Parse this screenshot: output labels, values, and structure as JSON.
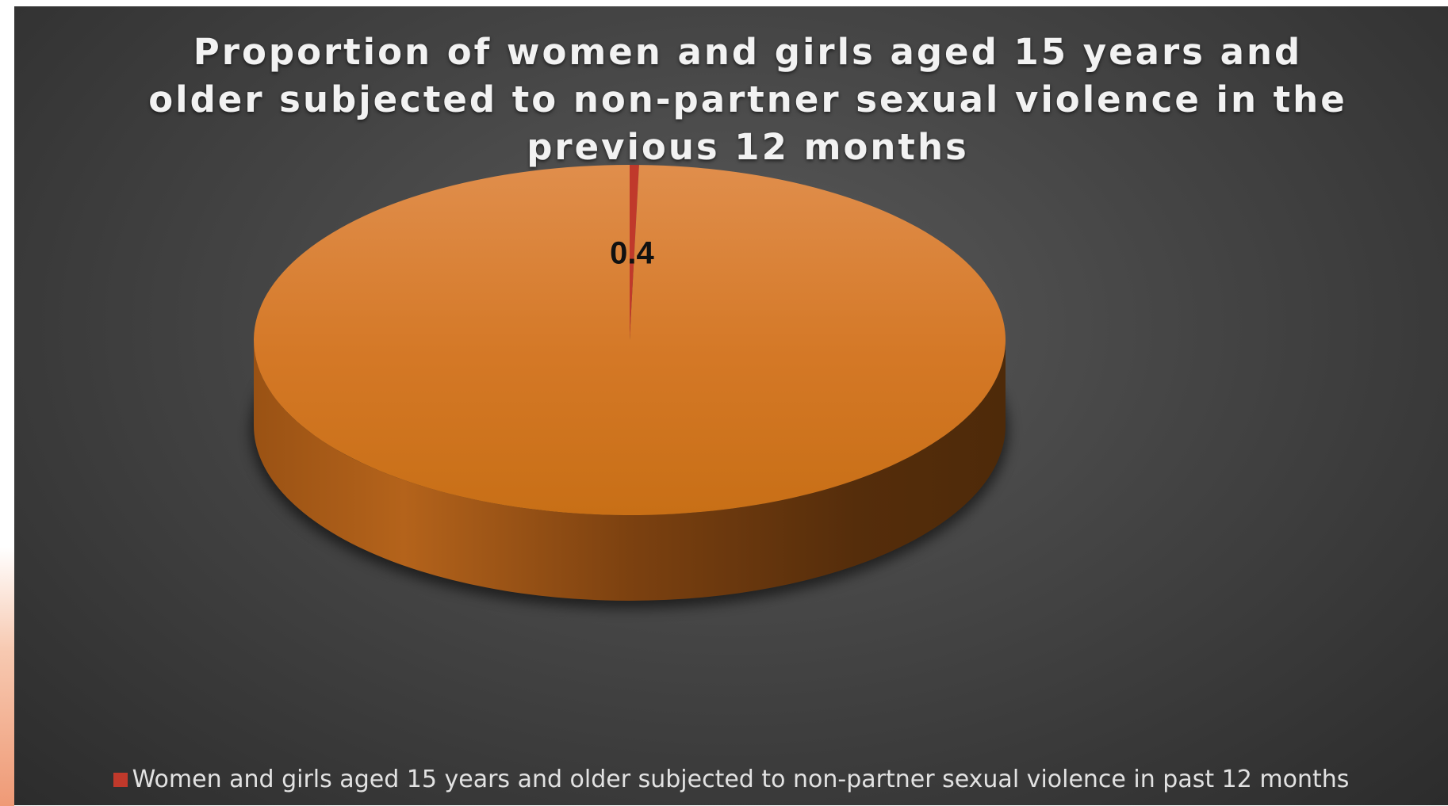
{
  "chart_data": {
    "type": "pie",
    "title": "Proportion of women and girls aged 15 years and older subjected to non-partner sexual violence in the previous 12 months",
    "slices": [
      {
        "label": "Women and girls aged 15 years and older subjected to non-partner sexual violence in past 12 months",
        "value": 0.4,
        "data_label": "0.4",
        "color": "#c0392b"
      },
      {
        "value": 99.6,
        "color": "#d37a26"
      }
    ],
    "legend": {
      "position": "bottom",
      "entries": [
        {
          "label": "Women and girls aged 15 years and older subjected to non-partner sexual violence in past 12 months",
          "color": "#c0392b"
        }
      ]
    },
    "style": "3d",
    "background": "#3a3a3a"
  }
}
